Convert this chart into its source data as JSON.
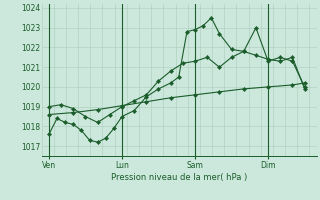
{
  "bg_color": "#cce8dc",
  "grid_color": "#aaccbb",
  "line_color": "#1a5c2a",
  "xlabel": "Pression niveau de la mer( hPa )",
  "ylim": [
    1016.5,
    1024.2
  ],
  "yticks": [
    1017,
    1018,
    1019,
    1020,
    1021,
    1022,
    1023,
    1024
  ],
  "xtick_labels": [
    "Ven",
    "Lun",
    "Sam",
    "Dim"
  ],
  "xtick_positions": [
    0,
    3,
    6,
    9
  ],
  "xlim": [
    -0.3,
    11.0
  ],
  "series1_x": [
    0,
    0.33,
    0.67,
    1.0,
    1.33,
    1.67,
    2.0,
    2.33,
    2.67,
    3.0,
    3.5,
    4.0,
    4.5,
    5.0,
    5.33,
    5.67,
    6.0,
    6.33,
    6.67,
    7.0,
    7.5,
    8.0,
    8.5,
    9.0,
    9.5,
    10.0,
    10.5
  ],
  "series1_y": [
    1017.6,
    1018.4,
    1018.2,
    1018.1,
    1017.8,
    1017.3,
    1017.2,
    1017.4,
    1017.9,
    1018.5,
    1018.8,
    1019.5,
    1019.9,
    1020.2,
    1020.5,
    1022.8,
    1022.9,
    1023.1,
    1023.5,
    1022.7,
    1021.9,
    1021.8,
    1023.0,
    1021.3,
    1021.5,
    1021.3,
    1020.0
  ],
  "series2_x": [
    0,
    0.5,
    1.0,
    1.5,
    2.0,
    2.5,
    3.0,
    3.5,
    4.0,
    4.5,
    5.0,
    5.5,
    6.0,
    6.5,
    7.0,
    7.5,
    8.0,
    8.5,
    9.0,
    9.5,
    10.0,
    10.5
  ],
  "series2_y": [
    1019.0,
    1019.1,
    1018.9,
    1018.5,
    1018.2,
    1018.6,
    1019.0,
    1019.3,
    1019.6,
    1020.3,
    1020.8,
    1021.2,
    1021.3,
    1021.5,
    1021.0,
    1021.5,
    1021.8,
    1021.6,
    1021.4,
    1021.3,
    1021.5,
    1019.9
  ],
  "series3_x": [
    0,
    1,
    2,
    3,
    4,
    5,
    6,
    7,
    8,
    9,
    10,
    10.5
  ],
  "series3_y": [
    1018.6,
    1018.7,
    1018.85,
    1019.05,
    1019.25,
    1019.45,
    1019.6,
    1019.75,
    1019.9,
    1020.0,
    1020.1,
    1020.2
  ]
}
